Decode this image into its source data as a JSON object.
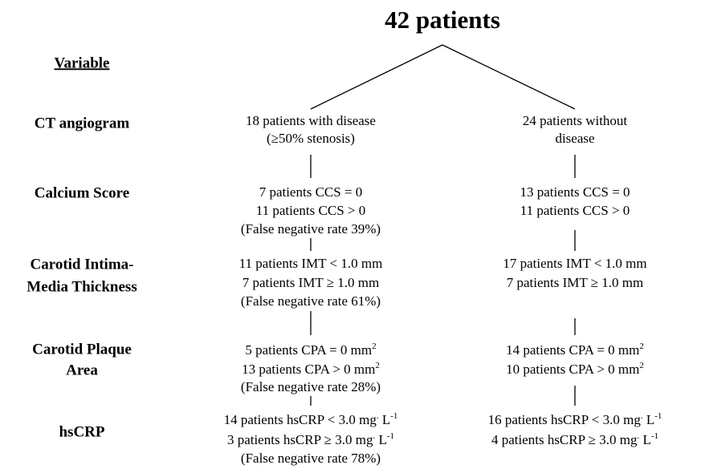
{
  "title": "42 patients",
  "variable_header": "Variable",
  "rows": [
    {
      "label": [
        "CT angiogram"
      ],
      "left": [
        [
          "18 patients with disease"
        ],
        [
          "(≥50% stenosis)"
        ]
      ],
      "right": [
        [
          "24 patients without"
        ],
        [
          "disease"
        ]
      ]
    },
    {
      "label": [
        "Calcium Score"
      ],
      "left": [
        [
          "7 patients CCS = 0"
        ],
        [
          "11 patients CCS > 0"
        ],
        [
          "(False negative rate 39%)"
        ]
      ],
      "right": [
        [
          "13 patients CCS = 0"
        ],
        [
          "11 patients CCS > 0"
        ]
      ]
    },
    {
      "label": [
        "Carotid Intima-",
        "Media Thickness"
      ],
      "left": [
        [
          "11 patients IMT < 1.0 mm"
        ],
        [
          "7 patients IMT ≥ 1.0 mm"
        ],
        [
          "(False negative rate 61%)"
        ]
      ],
      "right": [
        [
          "17 patients IMT < 1.0 mm"
        ],
        [
          "7 patients IMT ≥ 1.0 mm"
        ]
      ]
    },
    {
      "label": [
        "Carotid Plaque",
        "Area"
      ],
      "left": [
        [
          "5 patients CPA = 0 mm",
          {
            "sup": "2"
          }
        ],
        [
          "13 patients CPA > 0 mm",
          {
            "sup": "2"
          }
        ],
        [
          "(False negative rate 28%)"
        ]
      ],
      "right": [
        [
          "14 patients CPA = 0 mm",
          {
            "sup": "2"
          }
        ],
        [
          "10 patients CPA > 0 mm",
          {
            "sup": "2"
          }
        ]
      ]
    },
    {
      "label": [
        "hsCRP"
      ],
      "left": [
        [
          "14 patients hsCRP < 3.0 mg",
          {
            "sup": "."
          },
          " L",
          {
            "sup": "-1"
          }
        ],
        [
          "3 patients hsCRP ≥ 3.0 mg",
          {
            "sup": "."
          },
          " L",
          {
            "sup": "-1"
          }
        ],
        [
          "(False negative rate 78%)"
        ]
      ],
      "right": [
        [
          "16 patients hsCRP < 3.0 mg",
          {
            "sup": "."
          },
          " L",
          {
            "sup": "-1"
          }
        ],
        [
          "4 patients hsCRP ≥ 3.0 mg",
          {
            "sup": "."
          },
          " L",
          {
            "sup": "-1"
          }
        ]
      ]
    }
  ]
}
